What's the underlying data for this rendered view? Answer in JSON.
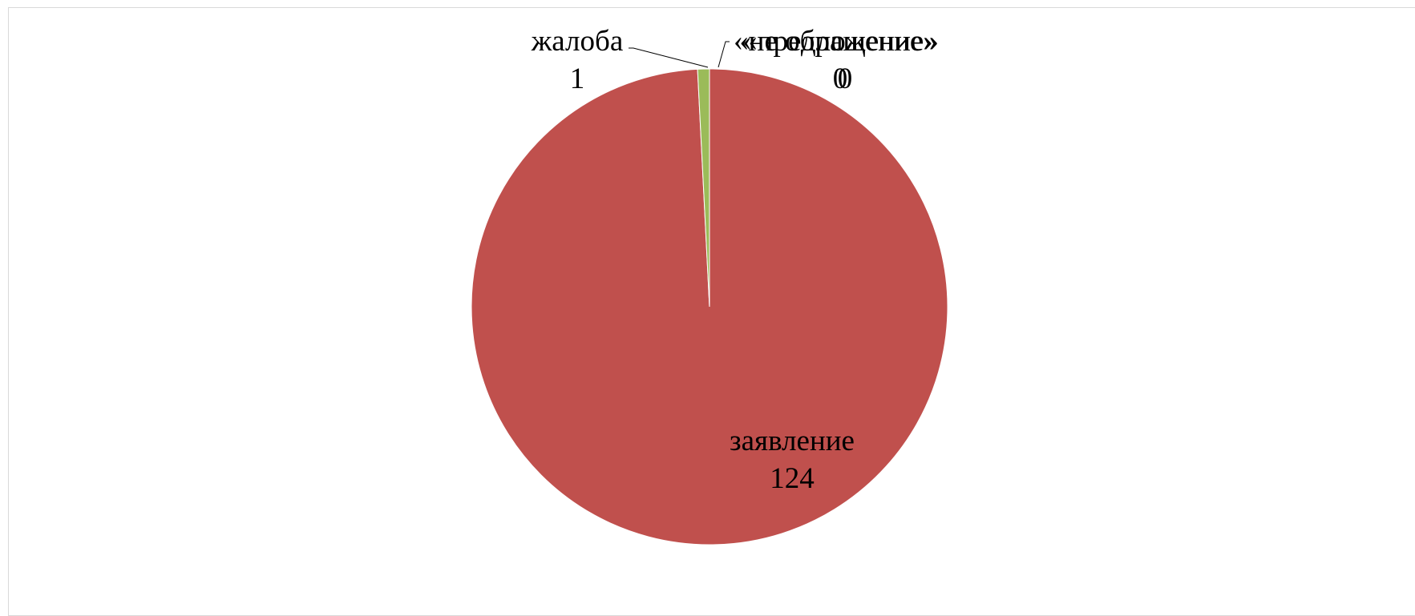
{
  "chart_data": {
    "type": "pie",
    "title": "",
    "slices": [
      {
        "name": "заявление",
        "value": 124,
        "color": "#C0504D"
      },
      {
        "name": "жалоба",
        "value": 1,
        "color": "#9BBB59"
      },
      {
        "name": "«предложение»",
        "value": 0,
        "color": "#4F81BD"
      },
      {
        "name": "«не обращение»",
        "value": 0,
        "color": "#8064A2"
      }
    ],
    "labels": {
      "zayavlenie_name": "заявление",
      "zayavlenie_value": "124",
      "zhaloba_name": "жалоба",
      "zhaloba_value": "1",
      "predlozhenie_name": "«предложение»",
      "predlozhenie_value": "0",
      "neobrashchenie_name": "«не обращение»",
      "neobrashchenie_value": "0"
    },
    "legend": "none"
  }
}
